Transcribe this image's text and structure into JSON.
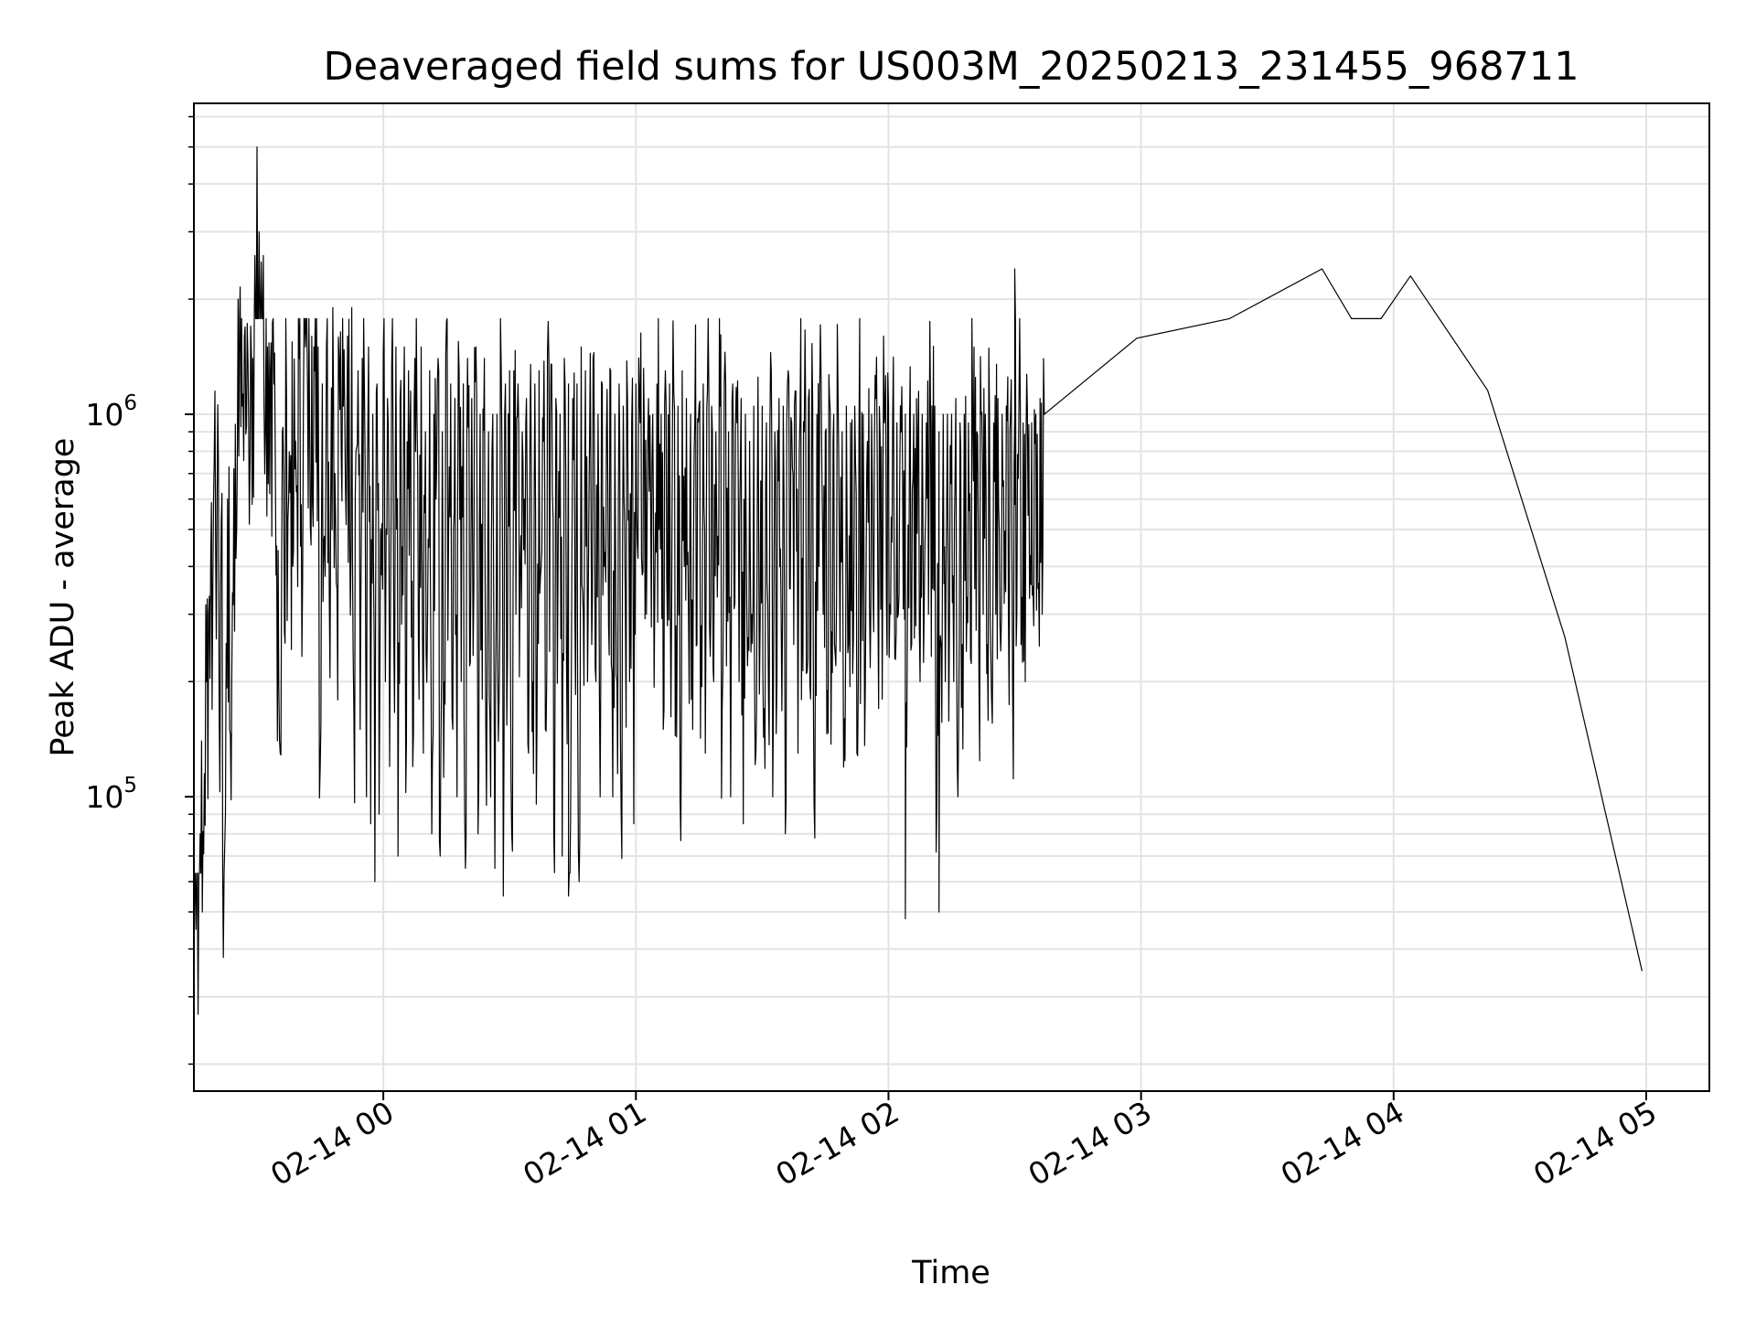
{
  "chart_data": {
    "type": "line",
    "title": "Deaveraged field sums for US003M_20250213_231455_968711",
    "xlabel": "Time",
    "ylabel": "Peak ADU - average",
    "yscale": "log",
    "xlim": [
      "2025-02-13 23:15",
      "2025-02-14 05:15"
    ],
    "ylim": [
      17000,
      6500000
    ],
    "grid": true,
    "x_ticks": [
      "02-14 00",
      "02-14 01",
      "02-14 02",
      "02-14 03",
      "02-14 04",
      "02-14 05"
    ],
    "y_ticks": [
      {
        "base": "10",
        "exp": "5",
        "value": 100000
      },
      {
        "base": "10",
        "exp": "6",
        "value": 1000000
      }
    ],
    "line_color": "#000000",
    "series": [
      {
        "x_start": "2025-02-13 23:15",
        "x_step_minutes": 0.5,
        "values": [
          30000,
          45000,
          27000,
          80000,
          50000,
          115000,
          200000,
          300000,
          420000,
          350000,
          1150000,
          580000,
          170000,
          520000,
          38000,
          90000,
          600000,
          150000,
          200000,
          720000,
          420000,
          2000000,
          2150000,
          1050000,
          1600000,
          930000,
          1000000,
          1700000,
          1400000,
          2600000,
          5000000,
          3000000,
          2500000,
          2600000,
          900000,
          1500000,
          620000,
          480000,
          1200000,
          380000,
          440000,
          130000,
          900000,
          270000,
          1100000,
          600000,
          780000,
          400000,
          720000,
          650000,
          1400000,
          580000,
          1000000,
          1500000,
          1150000,
          900000,
          1600000,
          1500000,
          750000,
          1500000,
          120000,
          1200000,
          480000,
          1500000,
          750000,
          600000,
          1900000,
          700000,
          350000,
          1400000,
          780000,
          1050000,
          650000,
          1600000,
          500000,
          1900000,
          170000,
          800000,
          1300000,
          150000,
          1400000,
          1200000,
          100000,
          1500000,
          85000,
          1000000,
          60000,
          1200000,
          90000,
          380000,
          1450000,
          200000,
          1100000,
          120000,
          1350000,
          260000,
          1500000,
          70000,
          1100000,
          450000,
          1500000,
          140000,
          1300000,
          1150000,
          120000,
          1400000,
          1000000,
          180000,
          1500000,
          130000,
          900000,
          300000,
          1300000,
          80000,
          1000000,
          600000,
          1400000,
          70000,
          900000,
          200000,
          1750000,
          500000,
          1200000,
          150000,
          1100000,
          100000,
          1300000,
          200000,
          1200000,
          65000,
          1400000,
          220000,
          1100000,
          350000,
          1500000,
          80000,
          1000000,
          180000,
          1400000,
          95000,
          900000,
          100000,
          1000000,
          65000,
          1000000,
          180000,
          1350000,
          55000,
          1200000,
          230000,
          1300000,
          80000,
          1300000,
          300000,
          1200000,
          400000,
          900000,
          600000,
          1100000,
          130000,
          1350000,
          200000,
          1200000,
          150000,
          1300000,
          400000,
          850000,
          150000,
          1450000,
          240000,
          1350000,
          80000,
          1100000,
          380000,
          1000000,
          70000,
          1400000,
          250000,
          1200000,
          90000,
          1100000,
          300000,
          1200000,
          60000,
          1500000,
          300000,
          1300000,
          200000,
          900000,
          250000,
          1450000,
          200000,
          1000000,
          100000,
          1200000,
          400000,
          900000,
          280000,
          1300000,
          100000,
          1000000,
          200000,
          1200000,
          90000,
          1050000,
          300000,
          1100000,
          200000,
          950000,
          85000,
          1200000,
          420000,
          950000,
          380000,
          900000,
          300000,
          1100000,
          600000,
          1000000,
          350000,
          1200000,
          500000,
          1000000,
          150000,
          1300000,
          280000,
          1200000,
          320000,
          1150000,
          280000,
          1050000,
          100000,
          1300000,
          400000,
          1100000,
          300000,
          1000000,
          150000,
          950000,
          250000,
          1050000,
          280000,
          1200000,
          130000,
          1150000,
          280000,
          1050000,
          200000,
          900000,
          480000,
          1050000,
          170000,
          1200000,
          220000,
          900000,
          100000,
          1200000,
          320000,
          950000,
          200000,
          1100000,
          85000,
          1000000,
          220000,
          850000,
          300000,
          1050000,
          130000,
          1250000,
          280000,
          1050000,
          170000,
          950000,
          180000,
          1450000,
          100000,
          900000,
          200000,
          1100000,
          300000,
          1050000,
          80000,
          1200000,
          350000,
          950000,
          250000,
          1150000,
          130000,
          1000000,
          420000,
          900000,
          210000,
          1100000,
          180000,
          1050000,
          78000,
          1000000,
          400000,
          1250000,
          300000,
          900000,
          190000,
          1100000,
          270000,
          1000000,
          220000,
          1200000,
          240000,
          900000,
          160000,
          1050000,
          250000,
          950000,
          210000,
          1050000,
          130000,
          880000,
          330000,
          1000000,
          190000,
          850000,
          320000,
          1000000,
          270000,
          1100000,
          300000,
          880000,
          180000,
          950000,
          330000,
          1050000,
          300000,
          1000000,
          230000,
          950000,
          340000,
          900000,
          310000,
          1000000,
          300000,
          950000,
          250000,
          1000000,
          280000,
          900000,
          200000,
          1000000,
          330000,
          950000,
          300000,
          950000,
          350000,
          1050000,
          100000,
          900000,
          250000,
          1000000,
          200000,
          1000000,
          300000,
          1000000,
          200000,
          1100000,
          100000,
          950000,
          250000,
          1000000,
          240000,
          950000,
          230000,
          1000000,
          350000,
          900000,
          200000,
          1000000,
          300000,
          1000000,
          250000,
          1000000,
          180000,
          950000,
          300000,
          1100000,
          280000,
          1000000,
          320000,
          1050000,
          300000,
          1000000,
          190000,
          1000000,
          300000,
          1050000,
          250000,
          950000,
          200000,
          1050000,
          330000,
          950000,
          280000,
          1000000,
          350000,
          1100000,
          300000,
          1000000
        ],
        "spike_events": [
          {
            "time": "2025-02-13 23:30",
            "value": 5000000
          },
          {
            "time": "2025-02-14 00:44",
            "value": 55000
          },
          {
            "time": "2025-02-14 02:04",
            "value": 48000
          },
          {
            "time": "2025-02-14 02:12",
            "value": 50000
          },
          {
            "time": "2025-02-14 02:30",
            "value": 2400000
          },
          {
            "time": "2025-02-14 03:43",
            "value": 2400000
          },
          {
            "time": "2025-02-14 04:04",
            "value": 2300000
          },
          {
            "time": "2025-02-14 04:59",
            "value": 35000
          }
        ]
      }
    ]
  }
}
